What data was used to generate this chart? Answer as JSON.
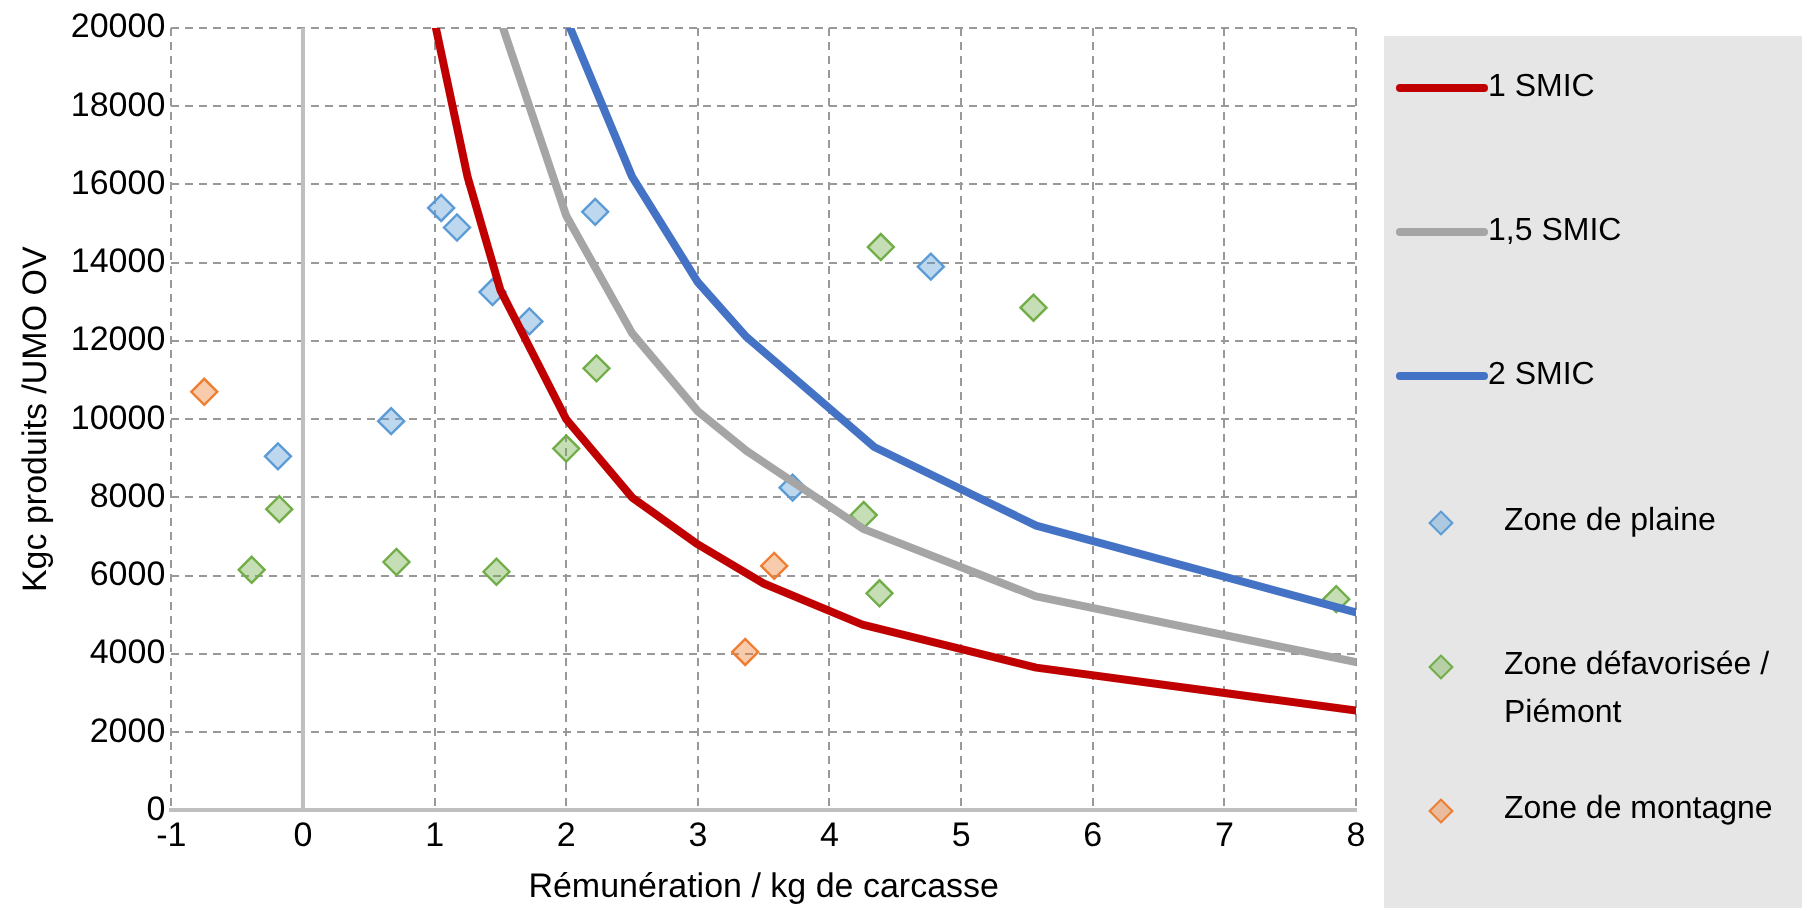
{
  "chart_data": {
    "type": "scatter",
    "xlabel": "Rémunération / kg de carcasse",
    "ylabel": "Kgc produits /UMO OV",
    "xlim": [
      -1,
      8
    ],
    "xticks": [
      -1,
      0,
      1,
      2,
      3,
      4,
      5,
      6,
      7,
      8
    ],
    "ylim": [
      0,
      20000
    ],
    "yticks": [
      0,
      2000,
      4000,
      6000,
      8000,
      10000,
      12000,
      14000,
      16000,
      18000,
      20000
    ],
    "grid": true,
    "legend": "right",
    "ref_lines": [
      {
        "axis": "x",
        "value": 0,
        "color": "#bfbfbf"
      }
    ],
    "series": [
      {
        "name": "1 SMIC",
        "type": "line",
        "color": "#c00000",
        "marker": "none",
        "line_style": "solid",
        "x": [
          1.01,
          1.25,
          1.5,
          2,
          2.5,
          3,
          3.5,
          4.25,
          5.57,
          8
        ],
        "values": [
          20000,
          16200,
          13300,
          10000,
          8000,
          6800,
          5800,
          4750,
          3650,
          2550
        ]
      },
      {
        "name": "1,5 SMIC",
        "type": "line",
        "color": "#a5a5a5",
        "marker": "none",
        "line_style": "solid",
        "x": [
          1.52,
          2,
          2.5,
          3,
          3.37,
          4.26,
          5.57,
          8
        ],
        "values": [
          20000,
          15200,
          12200,
          10200,
          9190,
          7190,
          5470,
          3790
        ]
      },
      {
        "name": "2 SMIC",
        "type": "line",
        "color": "#4472c4",
        "marker": "none",
        "line_style": "solid",
        "x": [
          2.03,
          2.5,
          3,
          3.37,
          4.34,
          5.57,
          8
        ],
        "values": [
          20000,
          16200,
          13500,
          12100,
          9290,
          7280,
          5060
        ]
      },
      {
        "name": "Zone de plaine",
        "type": "scatter",
        "color": "#5b9bd5",
        "marker": "diamond",
        "x": [
          1.05,
          1.17,
          1.44,
          1.72,
          2.22,
          0.67,
          -0.19,
          3.72,
          4.77
        ],
        "values": [
          15400,
          14900,
          13250,
          12500,
          15300,
          9950,
          9050,
          8250,
          13900
        ]
      },
      {
        "name": "Zone défavorisée / Piémont",
        "type": "scatter",
        "color": "#70ad47",
        "marker": "diamond",
        "x": [
          -0.18,
          -0.39,
          0.71,
          1.47,
          2.0,
          2.23,
          4.26,
          4.38,
          4.39,
          5.55,
          7.85
        ],
        "values": [
          7700,
          6150,
          6350,
          6100,
          9250,
          11300,
          7550,
          5550,
          14400,
          12850,
          5400
        ]
      },
      {
        "name": "Zone de montagne",
        "type": "scatter",
        "color": "#ed7d31",
        "marker": "diamond",
        "x": [
          -0.75,
          3.58,
          3.36
        ],
        "values": [
          10700,
          6250,
          4050
        ]
      }
    ]
  }
}
